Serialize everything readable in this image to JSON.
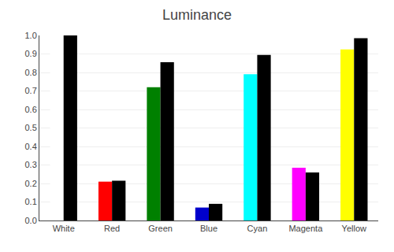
{
  "chart_data": {
    "type": "bar",
    "title": "Luminance",
    "categories": [
      "White",
      "Red",
      "Green",
      "Blue",
      "Cyan",
      "Magenta",
      "Yellow"
    ],
    "series": [
      {
        "values": [
          1.0,
          0.21,
          0.72,
          0.07,
          0.79,
          0.285,
          0.925
        ],
        "colors": [
          "#ffffff",
          "#ff0000",
          "#008000",
          "#0000cc",
          "#00ffff",
          "#ff00ff",
          "#ffff00"
        ]
      },
      {
        "values": [
          1.0,
          0.215,
          0.855,
          0.09,
          0.895,
          0.26,
          0.985
        ],
        "color": "#000000"
      }
    ],
    "ylim": [
      0.0,
      1.0
    ],
    "yticks": [
      {
        "value": 0.0,
        "label": "0.0"
      },
      0.1,
      0.2,
      0.3,
      0.4,
      0.5,
      0.6,
      0.7,
      0.8,
      0.9,
      {
        "value": 1.0,
        "label": "1.0"
      }
    ],
    "grid": true
  }
}
